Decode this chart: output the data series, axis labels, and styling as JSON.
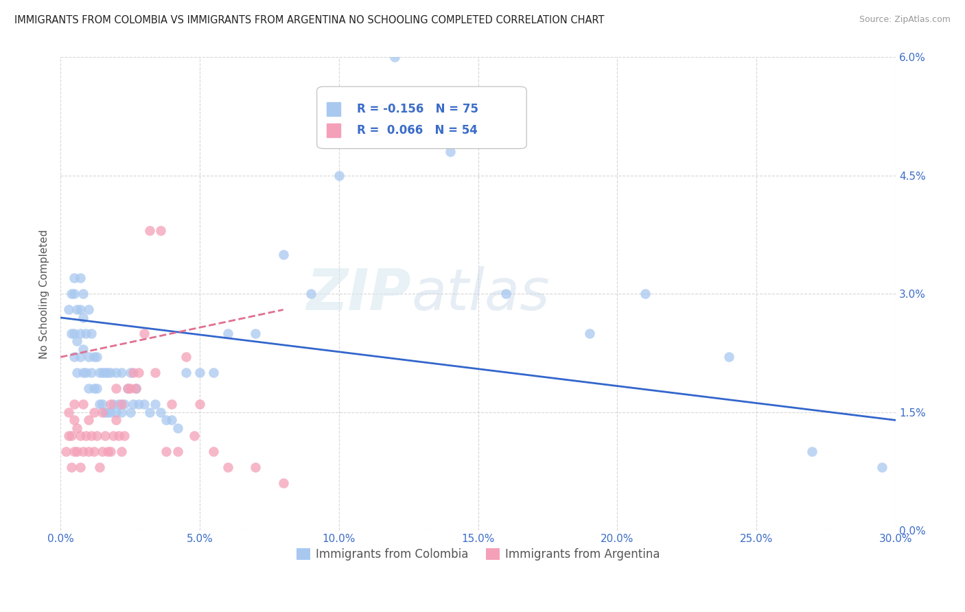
{
  "title": "IMMIGRANTS FROM COLOMBIA VS IMMIGRANTS FROM ARGENTINA NO SCHOOLING COMPLETED CORRELATION CHART",
  "source": "Source: ZipAtlas.com",
  "xlabel_ticks": [
    "0.0%",
    "5.0%",
    "10.0%",
    "15.0%",
    "20.0%",
    "25.0%",
    "30.0%"
  ],
  "xlabel_vals": [
    0.0,
    0.05,
    0.1,
    0.15,
    0.2,
    0.25,
    0.3
  ],
  "ylabel_ticks": [
    "0.0%",
    "1.5%",
    "3.0%",
    "4.5%",
    "6.0%"
  ],
  "ylabel_vals": [
    0.0,
    0.015,
    0.03,
    0.045,
    0.06
  ],
  "ylabel_label": "No Schooling Completed",
  "xlim": [
    0.0,
    0.3
  ],
  "ylim": [
    0.0,
    0.06
  ],
  "colombia_color": "#A8C8F0",
  "argentina_color": "#F4A0B8",
  "colombia_R": -0.156,
  "colombia_N": 75,
  "argentina_R": 0.066,
  "argentina_N": 54,
  "colombia_line_color": "#3366CC",
  "argentina_line_color": "#E07090",
  "background_color": "#FFFFFF",
  "grid_color": "#CCCCCC",
  "watermark": "ZIPatlas",
  "colombia_label": "Immigrants from Colombia",
  "argentina_label": "Immigrants from Argentina",
  "colombia_x": [
    0.003,
    0.004,
    0.004,
    0.005,
    0.005,
    0.005,
    0.005,
    0.006,
    0.006,
    0.006,
    0.007,
    0.007,
    0.007,
    0.007,
    0.008,
    0.008,
    0.008,
    0.008,
    0.009,
    0.009,
    0.01,
    0.01,
    0.01,
    0.011,
    0.011,
    0.012,
    0.012,
    0.013,
    0.013,
    0.014,
    0.014,
    0.015,
    0.015,
    0.016,
    0.016,
    0.017,
    0.017,
    0.018,
    0.018,
    0.019,
    0.02,
    0.02,
    0.021,
    0.022,
    0.022,
    0.023,
    0.024,
    0.025,
    0.025,
    0.026,
    0.027,
    0.028,
    0.03,
    0.032,
    0.034,
    0.036,
    0.038,
    0.04,
    0.042,
    0.045,
    0.05,
    0.055,
    0.06,
    0.07,
    0.08,
    0.09,
    0.1,
    0.12,
    0.14,
    0.16,
    0.19,
    0.21,
    0.24,
    0.27,
    0.295
  ],
  "colombia_y": [
    0.028,
    0.025,
    0.03,
    0.022,
    0.025,
    0.03,
    0.032,
    0.02,
    0.024,
    0.028,
    0.022,
    0.025,
    0.028,
    0.032,
    0.02,
    0.023,
    0.027,
    0.03,
    0.02,
    0.025,
    0.018,
    0.022,
    0.028,
    0.02,
    0.025,
    0.018,
    0.022,
    0.018,
    0.022,
    0.016,
    0.02,
    0.016,
    0.02,
    0.015,
    0.02,
    0.015,
    0.02,
    0.015,
    0.02,
    0.016,
    0.015,
    0.02,
    0.016,
    0.015,
    0.02,
    0.016,
    0.018,
    0.015,
    0.02,
    0.016,
    0.018,
    0.016,
    0.016,
    0.015,
    0.016,
    0.015,
    0.014,
    0.014,
    0.013,
    0.02,
    0.02,
    0.02,
    0.025,
    0.025,
    0.035,
    0.03,
    0.045,
    0.06,
    0.048,
    0.03,
    0.025,
    0.03,
    0.022,
    0.01,
    0.008
  ],
  "argentina_x": [
    0.002,
    0.003,
    0.003,
    0.004,
    0.004,
    0.005,
    0.005,
    0.005,
    0.006,
    0.006,
    0.007,
    0.007,
    0.008,
    0.008,
    0.009,
    0.01,
    0.01,
    0.011,
    0.012,
    0.012,
    0.013,
    0.014,
    0.015,
    0.015,
    0.016,
    0.017,
    0.018,
    0.018,
    0.019,
    0.02,
    0.02,
    0.021,
    0.022,
    0.022,
    0.023,
    0.024,
    0.025,
    0.026,
    0.027,
    0.028,
    0.03,
    0.032,
    0.034,
    0.036,
    0.038,
    0.04,
    0.042,
    0.045,
    0.048,
    0.05,
    0.055,
    0.06,
    0.07,
    0.08
  ],
  "argentina_y": [
    0.01,
    0.012,
    0.015,
    0.008,
    0.012,
    0.01,
    0.014,
    0.016,
    0.01,
    0.013,
    0.008,
    0.012,
    0.01,
    0.016,
    0.012,
    0.01,
    0.014,
    0.012,
    0.01,
    0.015,
    0.012,
    0.008,
    0.01,
    0.015,
    0.012,
    0.01,
    0.01,
    0.016,
    0.012,
    0.014,
    0.018,
    0.012,
    0.01,
    0.016,
    0.012,
    0.018,
    0.018,
    0.02,
    0.018,
    0.02,
    0.025,
    0.038,
    0.02,
    0.038,
    0.01,
    0.016,
    0.01,
    0.022,
    0.012,
    0.016,
    0.01,
    0.008,
    0.008,
    0.006
  ]
}
